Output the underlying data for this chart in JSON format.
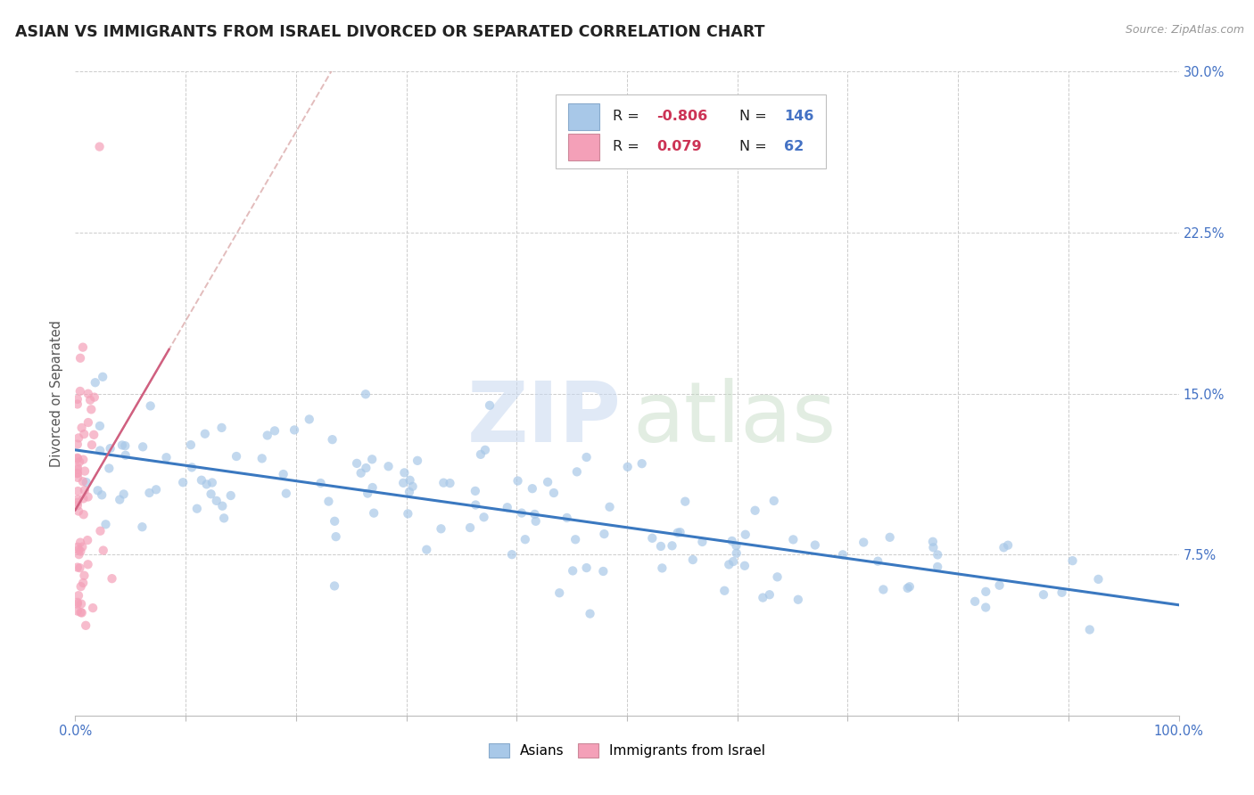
{
  "title": "ASIAN VS IMMIGRANTS FROM ISRAEL DIVORCED OR SEPARATED CORRELATION CHART",
  "source": "Source: ZipAtlas.com",
  "ylabel": "Divorced or Separated",
  "xlim": [
    0.0,
    1.0
  ],
  "ylim": [
    0.0,
    0.3
  ],
  "yticks": [
    0.0,
    0.075,
    0.15,
    0.225,
    0.3
  ],
  "yticklabels_right": [
    "",
    "7.5%",
    "15.0%",
    "22.5%",
    "30.0%"
  ],
  "color_asian": "#a8c8e8",
  "color_israel": "#f4a0b8",
  "color_asian_line": "#3a78c0",
  "color_israel_line": "#d06080",
  "color_israel_line_dashed": "#d09090",
  "scatter_alpha": 0.7,
  "dot_size": 55,
  "background_color": "#ffffff",
  "grid_color": "#cccccc",
  "title_color": "#222222",
  "axis_label_color": "#555555",
  "tick_label_color_right": "#4472c4",
  "legend_r_color": "#cc3355",
  "legend_n_color": "#4472c4",
  "watermark_zip_color": "#c8d8f0",
  "watermark_atlas_color": "#c0d8c0"
}
